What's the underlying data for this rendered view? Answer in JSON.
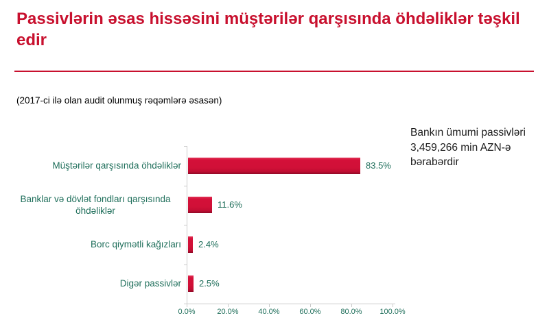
{
  "slide": {
    "title": "Passivlərin əsas hissəsini müştərilər qarşısında öhdəliklər təşkil edir",
    "subtitle": "(2017-ci ilə olan audit olunmuş rəqəmlərə əsasən)",
    "side_note": "Bankın ümumi passivləri 3,459,266 min AZN-ə bərabərdir"
  },
  "colors": {
    "title_red": "#c8102e",
    "bar_red": "#d01037",
    "label_green": "#1e6e5a",
    "axis_gray": "#c9c9c9"
  },
  "chart_data": {
    "type": "bar",
    "orientation": "horizontal",
    "title": "",
    "xlabel": "",
    "ylabel": "",
    "categories": [
      "Müştərilər qarşısında öhdəliklər",
      "Banklar və dövlət fondları qarşısında öhdəliklər",
      "Borc qiymətli kağızları",
      "Digər passivlər"
    ],
    "values": [
      83.5,
      11.6,
      2.4,
      2.5
    ],
    "value_labels": [
      "83.5%",
      "11.6%",
      "2.4%",
      "2.5%"
    ],
    "x_ticks": [
      "0.0%",
      "20.0%",
      "40.0%",
      "60.0%",
      "80.0%",
      "100.0%"
    ],
    "xlim": [
      0,
      100
    ],
    "grid": false,
    "legend": false
  }
}
